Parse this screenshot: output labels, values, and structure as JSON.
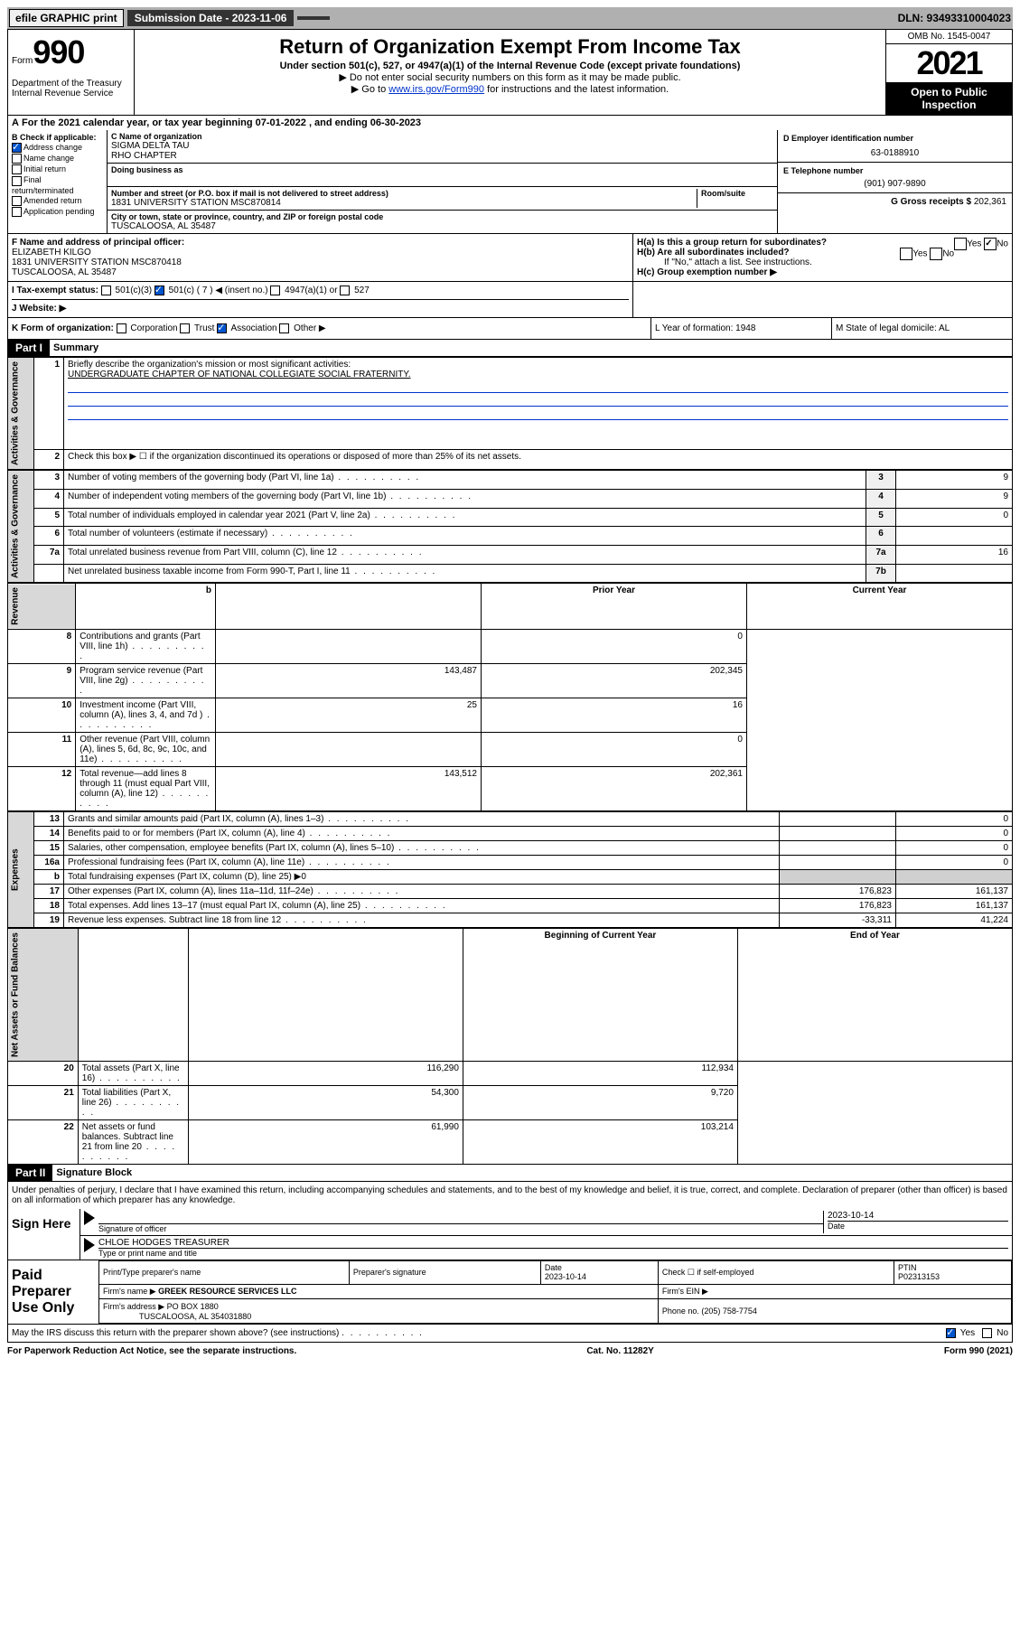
{
  "top_bar": {
    "efile": "efile GRAPHIC print",
    "sub_date_label": "Submission Date - 2023-11-06",
    "dln": "DLN: 93493310004023"
  },
  "header": {
    "form_label": "Form",
    "form_num": "990",
    "dept": "Department of the Treasury\nInternal Revenue Service",
    "title": "Return of Organization Exempt From Income Tax",
    "subtitle": "Under section 501(c), 527, or 4947(a)(1) of the Internal Revenue Code (except private foundations)",
    "note1": "▶ Do not enter social security numbers on this form as it may be made public.",
    "note2_pre": "▶ Go to ",
    "note2_link": "www.irs.gov/Form990",
    "note2_post": " for instructions and the latest information.",
    "omb": "OMB No. 1545-0047",
    "year": "2021",
    "open": "Open to Public Inspection"
  },
  "tax_year": "For the 2021 calendar year, or tax year beginning 07-01-2022  , and ending 06-30-2023",
  "section_b": {
    "label": "B Check if applicable:",
    "items": [
      "Address change",
      "Name change",
      "Initial return",
      "Final return/terminated",
      "Amended return",
      "Application pending"
    ]
  },
  "org": {
    "c_label": "C Name of organization",
    "name1": "SIGMA DELTA TAU",
    "name2": "RHO CHAPTER",
    "dba_label": "Doing business as",
    "addr_label": "Number and street (or P.O. box if mail is not delivered to street address)",
    "addr": "1831 UNIVERSITY STATION MSC870814",
    "room_label": "Room/suite",
    "city_label": "City or town, state or province, country, and ZIP or foreign postal code",
    "city": "TUSCALOOSA, AL  35487"
  },
  "right_info": {
    "d_label": "D Employer identification number",
    "ein": "63-0188910",
    "e_label": "E Telephone number",
    "phone": "(901) 907-9890",
    "g_label": "G Gross receipts $",
    "gross": "202,361"
  },
  "principal": {
    "f_label": "F  Name and address of principal officer:",
    "name": "ELIZABETH KILGO",
    "addr": "1831 UNIVERSITY STATION MSC870418",
    "city": "TUSCALOOSA, AL  35487"
  },
  "group": {
    "ha": "H(a)  Is this a group return for subordinates?",
    "hb": "H(b)  Are all subordinates included?",
    "hb_note": "If \"No,\" attach a list. See instructions.",
    "hc": "H(c)  Group exemption number ▶"
  },
  "tax_exempt": {
    "i_label": "I  Tax-exempt status:",
    "opt1": "501(c)(3)",
    "opt2": "501(c) ( 7 ) ◀ (insert no.)",
    "opt3": "4947(a)(1) or",
    "opt4": "527",
    "j_label": "J  Website: ▶"
  },
  "row_k": {
    "k_label": "K Form of organization:",
    "opts": [
      "Corporation",
      "Trust",
      "Association",
      "Other ▶"
    ],
    "l_label": "L Year of formation: 1948",
    "m_label": "M State of legal domicile: AL"
  },
  "part1": {
    "header": "Part I",
    "title": "Summary",
    "q1": "Briefly describe the organization's mission or most significant activities:",
    "mission": "UNDERGRADUATE CHAPTER OF NATIONAL COLLEGIATE SOCIAL FRATERNITY.",
    "q2": "Check this box ▶ ☐  if the organization discontinued its operations or disposed of more than 25% of its net assets.",
    "lines_gov": [
      {
        "n": "3",
        "t": "Number of voting members of the governing body (Part VI, line 1a)",
        "ref": "3",
        "v": "9"
      },
      {
        "n": "4",
        "t": "Number of independent voting members of the governing body (Part VI, line 1b)",
        "ref": "4",
        "v": "9"
      },
      {
        "n": "5",
        "t": "Total number of individuals employed in calendar year 2021 (Part V, line 2a)",
        "ref": "5",
        "v": "0"
      },
      {
        "n": "6",
        "t": "Total number of volunteers (estimate if necessary)",
        "ref": "6",
        "v": ""
      },
      {
        "n": "7a",
        "t": "Total unrelated business revenue from Part VIII, column (C), line 12",
        "ref": "7a",
        "v": "16"
      },
      {
        "n": "",
        "t": "Net unrelated business taxable income from Form 990-T, Part I, line 11",
        "ref": "7b",
        "v": ""
      }
    ],
    "col_headers": {
      "b": "b",
      "prior": "Prior Year",
      "current": "Current Year"
    },
    "revenue": [
      {
        "n": "8",
        "t": "Contributions and grants (Part VIII, line 1h)",
        "p": "",
        "c": "0"
      },
      {
        "n": "9",
        "t": "Program service revenue (Part VIII, line 2g)",
        "p": "143,487",
        "c": "202,345"
      },
      {
        "n": "10",
        "t": "Investment income (Part VIII, column (A), lines 3, 4, and 7d )",
        "p": "25",
        "c": "16"
      },
      {
        "n": "11",
        "t": "Other revenue (Part VIII, column (A), lines 5, 6d, 8c, 9c, 10c, and 11e)",
        "p": "",
        "c": "0"
      },
      {
        "n": "12",
        "t": "Total revenue—add lines 8 through 11 (must equal Part VIII, column (A), line 12)",
        "p": "143,512",
        "c": "202,361"
      }
    ],
    "expenses": [
      {
        "n": "13",
        "t": "Grants and similar amounts paid (Part IX, column (A), lines 1–3)",
        "p": "",
        "c": "0"
      },
      {
        "n": "14",
        "t": "Benefits paid to or for members (Part IX, column (A), line 4)",
        "p": "",
        "c": "0"
      },
      {
        "n": "15",
        "t": "Salaries, other compensation, employee benefits (Part IX, column (A), lines 5–10)",
        "p": "",
        "c": "0"
      },
      {
        "n": "16a",
        "t": "Professional fundraising fees (Part IX, column (A), line 11e)",
        "p": "",
        "c": "0"
      },
      {
        "n": "b",
        "t": "Total fundraising expenses (Part IX, column (D), line 25) ▶0",
        "p": "shaded",
        "c": "shaded"
      },
      {
        "n": "17",
        "t": "Other expenses (Part IX, column (A), lines 11a–11d, 11f–24e)",
        "p": "176,823",
        "c": "161,137"
      },
      {
        "n": "18",
        "t": "Total expenses. Add lines 13–17 (must equal Part IX, column (A), line 25)",
        "p": "176,823",
        "c": "161,137"
      },
      {
        "n": "19",
        "t": "Revenue less expenses. Subtract line 18 from line 12",
        "p": "-33,311",
        "c": "41,224"
      }
    ],
    "net_headers": {
      "b": "Beginning of Current Year",
      "e": "End of Year"
    },
    "net": [
      {
        "n": "20",
        "t": "Total assets (Part X, line 16)",
        "p": "116,290",
        "c": "112,934"
      },
      {
        "n": "21",
        "t": "Total liabilities (Part X, line 26)",
        "p": "54,300",
        "c": "9,720"
      },
      {
        "n": "22",
        "t": "Net assets or fund balances. Subtract line 21 from line 20",
        "p": "61,990",
        "c": "103,214"
      }
    ],
    "vert_labels": {
      "gov": "Activities & Governance",
      "rev": "Revenue",
      "exp": "Expenses",
      "net": "Net Assets or Fund Balances"
    }
  },
  "part2": {
    "header": "Part II",
    "title": "Signature Block",
    "penalty": "Under penalties of perjury, I declare that I have examined this return, including accompanying schedules and statements, and to the best of my knowledge and belief, it is true, correct, and complete. Declaration of preparer (other than officer) is based on all information of which preparer has any knowledge.",
    "sign_here": "Sign Here",
    "sig_officer": "Signature of officer",
    "date_label": "Date",
    "date": "2023-10-14",
    "name_title": "CHLOE HODGES TREASURER",
    "type_name": "Type or print name and title"
  },
  "preparer": {
    "label": "Paid Preparer Use Only",
    "cols": [
      "Print/Type preparer's name",
      "Preparer's signature",
      "Date",
      "Check ☐ if self-employed",
      "PTIN"
    ],
    "date": "2023-10-14",
    "ptin": "P02313153",
    "firm_name_label": "Firm's name    ▶",
    "firm_name": "GREEK RESOURCE SERVICES LLC",
    "firm_ein_label": "Firm's EIN ▶",
    "firm_addr_label": "Firm's address ▶",
    "firm_addr": "PO BOX 1880",
    "firm_city": "TUSCALOOSA, AL  354031880",
    "phone_label": "Phone no. (205) 758-7754"
  },
  "may_irs": "May the IRS discuss this return with the preparer shown above? (see instructions)",
  "footer": {
    "paperwork": "For Paperwork Reduction Act Notice, see the separate instructions.",
    "cat": "Cat. No. 11282Y",
    "form": "Form 990 (2021)"
  }
}
